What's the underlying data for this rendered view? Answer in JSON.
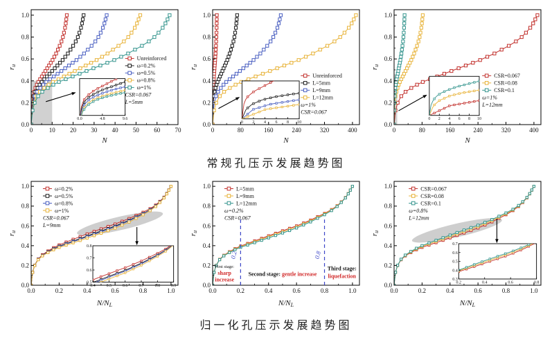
{
  "captions": {
    "conventional": "常规孔压示发展趋势图",
    "normalized": "归一化孔压示发展趋势图"
  },
  "colors": {
    "red": "#c2302c",
    "black": "#1c1c1c",
    "blue": "#4a5fc1",
    "yellow": "#e8b339",
    "teal": "#35958e",
    "stage_red": "#d02525",
    "dash_blue": "#3c46c8",
    "highlight_gray": "#c9c9c9"
  },
  "shape_ru": [
    [
      0,
      0
    ],
    [
      0.01,
      0.13
    ],
    [
      0.025,
      0.2
    ],
    [
      0.05,
      0.26
    ],
    [
      0.08,
      0.3
    ],
    [
      0.12,
      0.335
    ],
    [
      0.16,
      0.365
    ],
    [
      0.2,
      0.39
    ],
    [
      0.25,
      0.415
    ],
    [
      0.3,
      0.44
    ],
    [
      0.35,
      0.465
    ],
    [
      0.4,
      0.49
    ],
    [
      0.45,
      0.515
    ],
    [
      0.5,
      0.54
    ],
    [
      0.55,
      0.565
    ],
    [
      0.6,
      0.59
    ],
    [
      0.65,
      0.62
    ],
    [
      0.7,
      0.65
    ],
    [
      0.75,
      0.685
    ],
    [
      0.8,
      0.72
    ],
    [
      0.85,
      0.76
    ],
    [
      0.89,
      0.8
    ],
    [
      0.92,
      0.84
    ],
    [
      0.95,
      0.885
    ],
    [
      0.97,
      0.925
    ],
    [
      0.985,
      0.962
    ],
    [
      1.0,
      1.0
    ]
  ],
  "chart_data": [
    {
      "name": "conventional-water-content",
      "type": "line",
      "x_mode": "cycles",
      "xlabel": "N",
      "ylabel": "r_u",
      "xlim": [
        0,
        70
      ],
      "ylim": [
        0,
        1.05
      ],
      "xticks": [
        "0",
        "10",
        "20",
        "30",
        "40",
        "50",
        "60",
        "70"
      ],
      "yticks": [
        "0.0",
        "0.2",
        "0.4",
        "0.6",
        "0.8",
        "1.0"
      ],
      "series": [
        {
          "label": "Unreinforced",
          "color": "red",
          "N_L": 17
        },
        {
          "label": "ω=0.2%",
          "color": "black",
          "N_L": 25
        },
        {
          "label": "ω=0.5%",
          "color": "blue",
          "N_L": 36
        },
        {
          "label": "ω=0.8%",
          "color": "yellow",
          "N_L": 52
        },
        {
          "label": "ω=1%",
          "color": "teal",
          "N_L": 66
        }
      ],
      "legend": {
        "pos": [
          0.64,
          0.37
        ],
        "extras": [
          "CSR=0.067",
          "L=5mm"
        ]
      },
      "highlight": {
        "type": "rect",
        "x": [
          0,
          10
        ],
        "y": [
          0,
          0.4
        ]
      },
      "inset": {
        "box": [
          0.33,
          0.6,
          0.64,
          0.92
        ],
        "xr": [
          0,
          9.6
        ],
        "yr": [
          0.08,
          0.52
        ],
        "xticks": [
          "0.0",
          "4.8",
          "9.6"
        ],
        "yticks": []
      },
      "arrow": {
        "from": [
          0.1,
          0.8
        ],
        "to": [
          0.305,
          0.72
        ]
      }
    },
    {
      "name": "conventional-drain-length",
      "type": "line",
      "x_mode": "cycles",
      "xlabel": "N",
      "ylabel": "r_u",
      "xlim": [
        0,
        420
      ],
      "ylim": [
        0,
        1.05
      ],
      "xticks": [
        "0",
        "80",
        "160",
        "240",
        "320",
        "400"
      ],
      "yticks": [
        "0.0",
        "0.2",
        "0.4",
        "0.6",
        "0.8",
        "1.0"
      ],
      "series": [
        {
          "label": "Unreinforced",
          "color": "red",
          "N_L": 12
        },
        {
          "label": "L=5mm",
          "color": "black",
          "N_L": 70
        },
        {
          "label": "L=9mm",
          "color": "blue",
          "N_L": 195
        },
        {
          "label": "L=12mm",
          "color": "yellow",
          "N_L": 410
        }
      ],
      "legend": {
        "pos": [
          0.6,
          0.52
        ],
        "extras": [
          "ω=1%",
          "CSR=0.067"
        ]
      },
      "inset": {
        "box": [
          0.2,
          0.62,
          0.59,
          0.95
        ],
        "xr": [
          0,
          10
        ],
        "yr": [
          0,
          0.52
        ],
        "xticks": [
          "0",
          "2",
          "4",
          "6",
          "8",
          "10"
        ],
        "yticks": []
      },
      "arrow": {
        "from": [
          0.04,
          0.86
        ],
        "to": [
          0.185,
          0.76
        ]
      }
    },
    {
      "name": "conventional-csr",
      "type": "line",
      "x_mode": "cycles",
      "xlabel": "N",
      "ylabel": "r_u",
      "xlim": [
        0,
        420
      ],
      "ylim": [
        0,
        1.05
      ],
      "xticks": [
        "0",
        "80",
        "160",
        "240",
        "320",
        "400"
      ],
      "yticks": [
        "0.0",
        "0.2",
        "0.4",
        "0.6",
        "0.8",
        "1.0"
      ],
      "series": [
        {
          "label": "CSR=0.067",
          "color": "red",
          "N_L": 410
        },
        {
          "label": "CSR=0.08",
          "color": "yellow",
          "N_L": 82
        },
        {
          "label": "CSR=0.1",
          "color": "teal",
          "N_L": 30
        }
      ],
      "legend": {
        "pos": [
          0.6,
          0.52
        ],
        "extras": [
          "ω=1%",
          "L=12mm"
        ]
      },
      "highlight": {
        "type": "rect",
        "x": [
          0,
          9
        ],
        "y": [
          0,
          0.46
        ]
      },
      "inset": {
        "box": [
          0.24,
          0.58,
          0.58,
          0.92
        ],
        "xr": [
          0,
          10
        ],
        "yr": [
          0,
          0.52
        ],
        "xticks": [
          "0",
          "2",
          "4",
          "6",
          "8",
          "10"
        ],
        "yticks": []
      },
      "arrow": {
        "from": [
          0.03,
          0.88
        ],
        "to": [
          0.225,
          0.74
        ]
      }
    },
    {
      "name": "normalized-water-content",
      "type": "line",
      "x_mode": "normalized",
      "xlabel": "N/N_L",
      "ylabel": "r_u",
      "xlim": [
        0,
        1.05
      ],
      "ylim": [
        0,
        1.05
      ],
      "xticks": [
        "0.0",
        "0.2",
        "0.4",
        "0.6",
        "0.8",
        "1.0"
      ],
      "yticks": [
        "0.0",
        "0.2",
        "0.4",
        "0.6",
        "0.8",
        "1.0"
      ],
      "series": [
        {
          "label": "ω=0.2%",
          "color": "red",
          "offset": 0.03
        },
        {
          "label": "ω=0.5%",
          "color": "black",
          "offset": 0.008
        },
        {
          "label": "ω=0.8%",
          "color": "blue",
          "offset": 0.0
        },
        {
          "label": "ω=1%",
          "color": "yellow",
          "offset": -0.014
        }
      ],
      "legend": {
        "pos": [
          0.08,
          0.01
        ],
        "extras": [
          "CSR=0.067",
          "L=9mm"
        ]
      },
      "highlight": {
        "type": "ellipse",
        "cx": 0.635,
        "cy": 0.625,
        "rx": 0.315,
        "ry": 0.068,
        "rot": -13
      },
      "inset": {
        "box": [
          0.42,
          0.62,
          0.97,
          0.97
        ],
        "xr": [
          0.4,
          0.9
        ],
        "yr": [
          0.5,
          0.8
        ],
        "xticks": [
          "0.4",
          "0.5",
          "0.6",
          "0.7",
          "0.8",
          "0.9"
        ],
        "yticks": [
          "0.5",
          "0.6",
          "0.7",
          "0.8"
        ]
      },
      "arrow": {
        "from": [
          0.72,
          0.44
        ],
        "to": [
          0.72,
          0.615
        ]
      }
    },
    {
      "name": "normalized-stages",
      "type": "line",
      "x_mode": "normalized",
      "xlabel": "N/N_L",
      "ylabel": "r_u",
      "xlim": [
        0,
        1.05
      ],
      "ylim": [
        0,
        1.05
      ],
      "xticks": [
        "0.0",
        "0.2",
        "0.4",
        "0.6",
        "0.8",
        "1.0"
      ],
      "yticks": [
        "0.0",
        "0.2",
        "0.4",
        "0.6",
        "0.8",
        "1.0"
      ],
      "series": [
        {
          "label": "L=5mm",
          "color": "red",
          "offset": 0.01
        },
        {
          "label": "L=9mm",
          "color": "yellow",
          "offset": 0.0
        },
        {
          "label": "L=12mm",
          "color": "teal",
          "offset": -0.012
        }
      ],
      "legend": {
        "pos": [
          0.08,
          0.01
        ],
        "extras": [
          "ω=0.2%",
          "CSR=0.067"
        ]
      },
      "stages": {
        "lines": [
          {
            "x": 0.2,
            "label": "0.2"
          },
          {
            "x": 0.8,
            "label": "0.8"
          }
        ],
        "first": [
          "First stage:",
          "sharp",
          "increase"
        ],
        "second": [
          "Second stage:",
          " gentle increase"
        ],
        "third": [
          "Third stage:",
          "liquefaction"
        ]
      }
    },
    {
      "name": "normalized-csr",
      "type": "line",
      "x_mode": "normalized",
      "xlabel": "N/N_L",
      "ylabel": "r_u",
      "xlim": [
        0,
        1.05
      ],
      "ylim": [
        0,
        1.05
      ],
      "xticks": [
        "0.0",
        "0.2",
        "0.4",
        "0.6",
        "0.8",
        "1.0"
      ],
      "yticks": [
        "0.0",
        "0.2",
        "0.4",
        "0.6",
        "0.8",
        "1.0"
      ],
      "series": [
        {
          "label": "CSR=0.067",
          "color": "red",
          "offset": -0.012
        },
        {
          "label": "CSR=0.08",
          "color": "yellow",
          "offset": 0.004
        },
        {
          "label": "CSR=0.1",
          "color": "teal",
          "offset": 0.018
        }
      ],
      "legend": {
        "pos": [
          0.1,
          0.01
        ],
        "extras": [
          "ω=0.8%",
          "L=12mm"
        ]
      },
      "highlight": {
        "type": "ellipse",
        "cx": 0.45,
        "cy": 0.555,
        "rx": 0.33,
        "ry": 0.068,
        "rot": -13
      },
      "inset": {
        "box": [
          0.44,
          0.6,
          0.97,
          0.94
        ],
        "xr": [
          0.2,
          0.8
        ],
        "yr": [
          0.3,
          0.7
        ],
        "xticks": [
          "0.2",
          "0.4",
          "0.6",
          "0.8"
        ],
        "yticks": [
          "0.3",
          "0.4",
          "0.5",
          "0.6",
          "0.7"
        ]
      },
      "arrow": {
        "from": [
          0.7,
          0.36
        ],
        "to": [
          0.7,
          0.595
        ]
      }
    }
  ]
}
